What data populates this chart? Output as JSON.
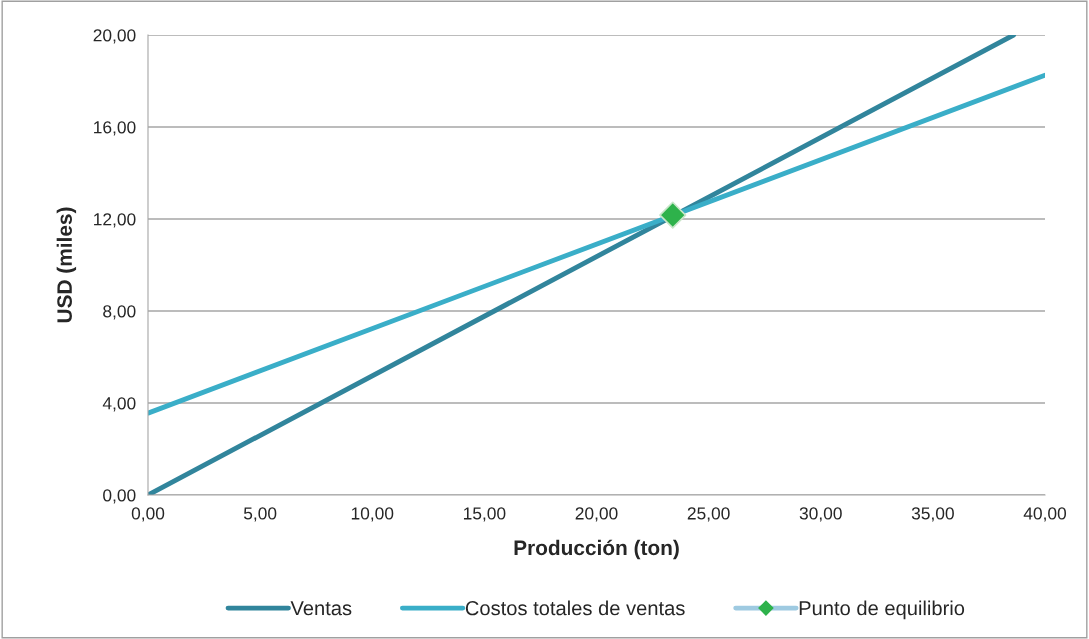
{
  "chart_data": {
    "type": "line",
    "xlabel": "Producción (ton)",
    "ylabel": "USD (miles)",
    "xlim": [
      0,
      40
    ],
    "ylim": [
      0,
      20
    ],
    "xticks": [
      {
        "value": 0,
        "label": "0,00"
      },
      {
        "value": 5,
        "label": "5,00"
      },
      {
        "value": 10,
        "label": "10,00"
      },
      {
        "value": 15,
        "label": "15,00"
      },
      {
        "value": 20,
        "label": "20,00"
      },
      {
        "value": 25,
        "label": "25,00"
      },
      {
        "value": 30,
        "label": "30,00"
      },
      {
        "value": 35,
        "label": "35,00"
      },
      {
        "value": 40,
        "label": "40,00"
      }
    ],
    "yticks": [
      {
        "value": 0,
        "label": "0,00"
      },
      {
        "value": 4,
        "label": "4,00"
      },
      {
        "value": 8,
        "label": "8,00"
      },
      {
        "value": 12,
        "label": "12,00"
      },
      {
        "value": 16,
        "label": "16,00"
      },
      {
        "value": 20,
        "label": "20,00"
      }
    ],
    "grid": "y",
    "legend": "bottom",
    "series": [
      {
        "name": "Ventas",
        "color": "#31859c",
        "x": [
          0,
          38.6
        ],
        "values": [
          0,
          20
        ],
        "marker": "none"
      },
      {
        "name": "Costos totales de ventas",
        "color": "#3aaec8",
        "x": [
          0,
          40
        ],
        "values": [
          3.56,
          18.25
        ],
        "marker": "none"
      },
      {
        "name": "Punto de equilibrio",
        "color": "#2eb24b",
        "type": "scatter",
        "x": [
          23.4
        ],
        "values": [
          12.17
        ],
        "marker": "diamond"
      }
    ]
  }
}
